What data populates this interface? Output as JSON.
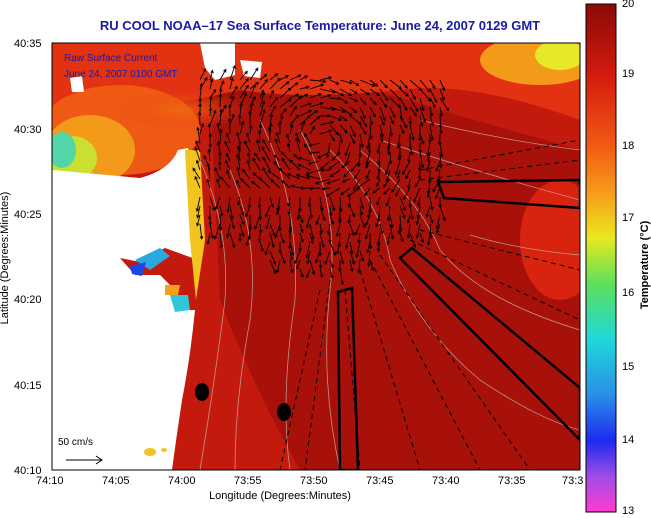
{
  "title": "RU COOL  NOAA–17  Sea Surface Temperature:  June 24, 2007 0129 GMT",
  "axes": {
    "xlabel": "Longitude (Degrees:Minutes)",
    "ylabel": "Latitude (Degrees:Minutes)",
    "xticks": [
      "74:10",
      "74:05",
      "74:00",
      "73:55",
      "73:50",
      "73:45",
      "73:40",
      "73:35",
      "73:3"
    ],
    "yticks": [
      "40:35",
      "40:30",
      "40:25",
      "40:20",
      "40:15",
      "40:10"
    ]
  },
  "colorbar": {
    "label": "Temperature (°C)",
    "ticks": [
      "20",
      "19",
      "18",
      "17",
      "16",
      "15",
      "14",
      "13"
    ],
    "range": [
      13,
      20
    ]
  },
  "legend": {
    "line1": "Raw Surface Current",
    "line2": "June 24, 2007 0100 GMT"
  },
  "scale_label": "50 cm/s",
  "colors": {
    "title": "#1a1aa8",
    "land": "#ffffff",
    "sst_high": "#a00d08",
    "sst_mid": "#e02a10",
    "sst_low": "#3a8fe0"
  }
}
